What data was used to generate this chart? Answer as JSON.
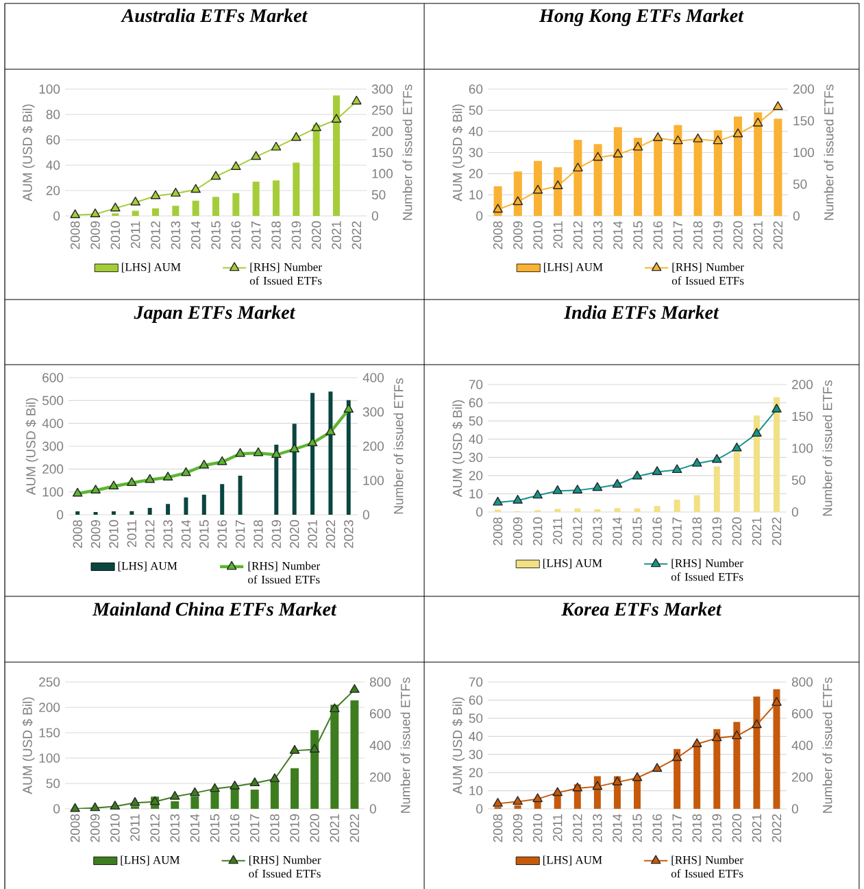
{
  "chart_data": [
    {
      "type": "bar",
      "title": "Australia ETFs Market",
      "ylabel": "AUM (USD $ Bil)",
      "y2label": "Number of issued ETFs",
      "categories": [
        "2008",
        "2009",
        "2010",
        "2011",
        "2012",
        "2013",
        "2014",
        "2015",
        "2016",
        "2017",
        "2018",
        "2019",
        "2020",
        "2021",
        "2022"
      ],
      "ylim": [
        0,
        100
      ],
      "yticks": [
        0,
        20,
        40,
        60,
        80,
        100
      ],
      "y2lim": [
        0,
        300
      ],
      "y2ticks": [
        0,
        50,
        100,
        150,
        200,
        250,
        300
      ],
      "grid": "y",
      "legend": "bottom",
      "series": [
        {
          "name": "[LHS] AUM",
          "color": "#a5cd39",
          "values": [
            0,
            0,
            2,
            4,
            6,
            8,
            12,
            15,
            18,
            27,
            28,
            42,
            72,
            95,
            null
          ]
        },
        {
          "name": "[RHS] Number of Issued ETFs",
          "type": "line",
          "axis": "y2",
          "color": "#a5cd39",
          "marker": "triangle",
          "values": [
            2,
            4,
            18,
            32,
            47,
            53,
            62,
            93,
            116,
            140,
            162,
            185,
            208,
            228,
            271
          ]
        }
      ]
    },
    {
      "type": "bar",
      "title": "Hong Kong ETFs Market",
      "ylabel": "AUM (USD $ Bil)",
      "y2label": "Number of issued ETFs",
      "categories": [
        "2008",
        "2009",
        "2010",
        "2011",
        "2012",
        "2013",
        "2014",
        "2015",
        "2016",
        "2017",
        "2018",
        "2019",
        "2020",
        "2021",
        "2022"
      ],
      "ylim": [
        0,
        60
      ],
      "yticks": [
        0,
        10,
        20,
        30,
        40,
        50,
        60
      ],
      "y2lim": [
        0,
        200
      ],
      "y2ticks": [
        0,
        50,
        100,
        150,
        200
      ],
      "grid": "y",
      "legend": "bottom",
      "series": [
        {
          "name": "[LHS] AUM",
          "color": "#f9b233",
          "values": [
            14,
            21,
            26,
            23,
            36,
            34,
            42,
            37,
            37,
            43,
            37,
            40.5,
            47,
            49,
            46
          ]
        },
        {
          "name": "[RHS] Number of Issued ETFs",
          "type": "line",
          "axis": "y2",
          "color": "#f9b233",
          "marker": "triangle",
          "values": [
            10,
            22,
            40,
            47,
            75,
            92,
            97,
            108,
            123,
            118,
            121,
            118,
            129,
            146,
            172
          ]
        }
      ]
    },
    {
      "type": "bar",
      "title": "Japan ETFs Market",
      "ylabel": "AUM (USD $ Bil)",
      "y2label": "Number of issued ETFs",
      "categories": [
        "2008",
        "2009",
        "2010",
        "2011",
        "2012",
        "2013",
        "2014",
        "2015",
        "2016",
        "2017",
        "2018",
        "2019",
        "2020",
        "2021",
        "2022",
        "2023"
      ],
      "ylim": [
        0,
        600
      ],
      "yticks": [
        0,
        100,
        200,
        300,
        400,
        500,
        600
      ],
      "y2lim": [
        0,
        400
      ],
      "y2ticks": [
        0,
        100,
        200,
        300,
        400
      ],
      "grid": "y",
      "legend": "bottom",
      "series": [
        {
          "name": "[LHS] AUM",
          "color": "#0b4540",
          "values": [
            15,
            12,
            15,
            16,
            30,
            47,
            76,
            88,
            134,
            171,
            null,
            307,
            398,
            533,
            539,
            502
          ]
        },
        {
          "name": "[RHS] Number of Issued ETFs",
          "type": "line",
          "axis": "y2",
          "color": "#5cb531",
          "marker": "triangle",
          "values": [
            62,
            71,
            83,
            93,
            102,
            109,
            122,
            144,
            154,
            178,
            180,
            175,
            191,
            209,
            241,
            307
          ]
        }
      ]
    },
    {
      "type": "bar",
      "title": "India ETFs Market",
      "ylabel": "AUM (USD $ Bil)",
      "y2label": "Number of issued ETFs",
      "categories": [
        "2008",
        "2009",
        "2010",
        "2011",
        "2012",
        "2013",
        "2014",
        "2015",
        "2016",
        "2017",
        "2018",
        "2019",
        "2020",
        "2021",
        "2022"
      ],
      "ylim": [
        0,
        70
      ],
      "yticks": [
        0,
        10,
        20,
        30,
        40,
        50,
        60,
        70
      ],
      "y2lim": [
        0,
        200
      ],
      "y2ticks": [
        0,
        50,
        100,
        150,
        200
      ],
      "grid": "y",
      "legend": "bottom",
      "series": [
        {
          "name": "[LHS] AUM",
          "color": "#f2e084",
          "values": [
            1.3,
            0.5,
            1,
            1.7,
            2,
            1.5,
            2.2,
            2,
            3.3,
            6.8,
            9.2,
            25,
            33,
            53,
            63
          ]
        },
        {
          "name": "[RHS] Number of Issued ETFs",
          "type": "line",
          "axis": "y2",
          "color": "#14958a",
          "marker": "triangle",
          "values": [
            15,
            18,
            26,
            33,
            34,
            38,
            43,
            56,
            63,
            66,
            76,
            82,
            100,
            123,
            161
          ]
        }
      ]
    },
    {
      "type": "bar",
      "title": "Mainland China ETFs Market",
      "ylabel": "AUM (USD $ Bil)",
      "y2label": "Number of issued ETFs",
      "categories": [
        "2008",
        "2009",
        "2010",
        "2011",
        "2012",
        "2013",
        "2014",
        "2015",
        "2016",
        "2017",
        "2018",
        "2019",
        "2020",
        "2021",
        "2022"
      ],
      "ylim": [
        0,
        250
      ],
      "yticks": [
        0,
        50,
        100,
        150,
        200,
        250
      ],
      "y2lim": [
        0,
        800
      ],
      "y2ticks": [
        0,
        200,
        400,
        600,
        800
      ],
      "grid": "y",
      "legend": "bottom",
      "series": [
        {
          "name": "[LHS] AUM",
          "color": "#3d7d1f",
          "values": [
            0,
            0,
            null,
            5,
            24,
            15,
            25,
            35,
            40,
            38,
            55,
            80,
            155,
            205,
            214
          ]
        },
        {
          "name": "[RHS] Number of Issued ETFs",
          "type": "line",
          "axis": "y2",
          "color": "#3d7d1f",
          "marker": "triangle",
          "values": [
            0,
            5,
            15,
            38,
            44,
            77,
            100,
            126,
            142,
            162,
            188,
            367,
            374,
            629,
            751
          ]
        }
      ]
    },
    {
      "type": "bar",
      "title": "Korea ETFs Market",
      "ylabel": "AUM (USD $ Bil)",
      "y2label": "Number of issued ETFs",
      "categories": [
        "2008",
        "2009",
        "2010",
        "2011",
        "2012",
        "2013",
        "2014",
        "2015",
        "2016",
        "2017",
        "2018",
        "2019",
        "2020",
        "2021",
        "2022"
      ],
      "ylim": [
        0,
        70
      ],
      "yticks": [
        0,
        10,
        20,
        30,
        40,
        50,
        60,
        70
      ],
      "y2lim": [
        0,
        800
      ],
      "y2ticks": [
        0,
        200,
        400,
        600,
        800
      ],
      "grid": "y",
      "legend": "bottom",
      "series": [
        {
          "name": "[LHS] AUM",
          "color": "#c55a0c",
          "values": [
            1,
            2,
            4,
            8,
            13.5,
            18,
            18,
            16,
            null,
            33,
            36,
            44,
            48,
            62,
            66
          ]
        },
        {
          "name": "[RHS] Number of Issued ETFs",
          "type": "line",
          "axis": "y2",
          "color": "#c55a0c",
          "marker": "triangle",
          "values": [
            33,
            45,
            62,
            101,
            130,
            140,
            168,
            195,
            253,
            321,
            409,
            446,
            459,
            529,
            669
          ]
        }
      ]
    }
  ]
}
